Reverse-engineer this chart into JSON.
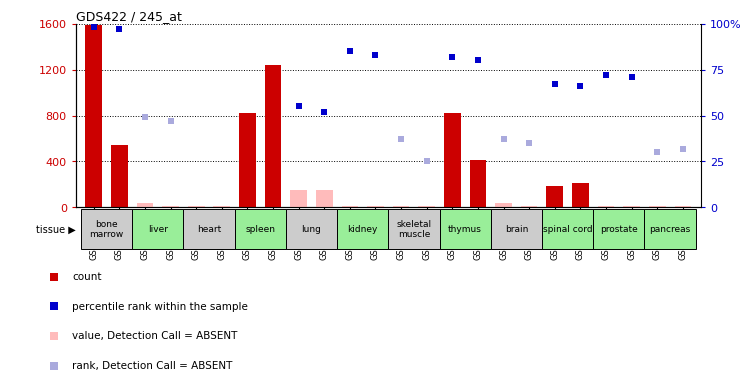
{
  "title": "GDS422 / 245_at",
  "gsm_ids": [
    "GSM12634",
    "GSM12723",
    "GSM12639",
    "GSM12718",
    "GSM12644",
    "GSM12664",
    "GSM12649",
    "GSM12669",
    "GSM12654",
    "GSM12698",
    "GSM12659",
    "GSM12728",
    "GSM12674",
    "GSM12693",
    "GSM12683",
    "GSM12713",
    "GSM12688",
    "GSM12708",
    "GSM12703",
    "GSM12753",
    "GSM12733",
    "GSM12743",
    "GSM12738",
    "GSM12748"
  ],
  "tissue_layout": [
    {
      "name": "bone\nmarrow",
      "start": 0,
      "end": 1,
      "color": "#cccccc"
    },
    {
      "name": "liver",
      "start": 2,
      "end": 3,
      "color": "#99ee99"
    },
    {
      "name": "heart",
      "start": 4,
      "end": 5,
      "color": "#cccccc"
    },
    {
      "name": "spleen",
      "start": 6,
      "end": 7,
      "color": "#99ee99"
    },
    {
      "name": "lung",
      "start": 8,
      "end": 9,
      "color": "#cccccc"
    },
    {
      "name": "kidney",
      "start": 10,
      "end": 11,
      "color": "#99ee99"
    },
    {
      "name": "skeletal\nmuscle",
      "start": 12,
      "end": 13,
      "color": "#cccccc"
    },
    {
      "name": "thymus",
      "start": 14,
      "end": 15,
      "color": "#99ee99"
    },
    {
      "name": "brain",
      "start": 16,
      "end": 17,
      "color": "#cccccc"
    },
    {
      "name": "spinal cord",
      "start": 18,
      "end": 19,
      "color": "#99ee99"
    },
    {
      "name": "prostate",
      "start": 20,
      "end": 21,
      "color": "#99ee99"
    },
    {
      "name": "pancreas",
      "start": 22,
      "end": 23,
      "color": "#99ee99"
    }
  ],
  "count_values": [
    1590,
    540,
    40,
    15,
    15,
    15,
    820,
    1240,
    155,
    155,
    15,
    15,
    15,
    15,
    820,
    415,
    35,
    15,
    190,
    215,
    15,
    15,
    15,
    15
  ],
  "count_absent": [
    false,
    false,
    true,
    true,
    true,
    true,
    false,
    false,
    true,
    true,
    true,
    true,
    true,
    true,
    false,
    false,
    true,
    true,
    false,
    false,
    true,
    true,
    true,
    true
  ],
  "percentile_values": [
    98,
    97,
    null,
    null,
    null,
    null,
    null,
    null,
    55,
    52,
    85,
    83,
    null,
    null,
    82,
    80,
    null,
    null,
    67,
    66,
    72,
    71,
    null,
    null
  ],
  "rank_values": [
    null,
    null,
    49,
    47,
    null,
    null,
    null,
    null,
    null,
    null,
    null,
    null,
    37,
    25,
    null,
    null,
    37,
    35,
    null,
    null,
    null,
    null,
    30,
    32
  ],
  "left_ylim": [
    0,
    1600
  ],
  "right_ylim": [
    0,
    100
  ],
  "left_yticks": [
    0,
    400,
    800,
    1200,
    1600
  ],
  "right_yticks": [
    0,
    25,
    50,
    75,
    100
  ],
  "count_color": "#cc0000",
  "count_absent_color": "#ffbbbb",
  "percentile_color": "#0000cc",
  "rank_color": "#aaaadd",
  "bg_color": "#ffffff"
}
